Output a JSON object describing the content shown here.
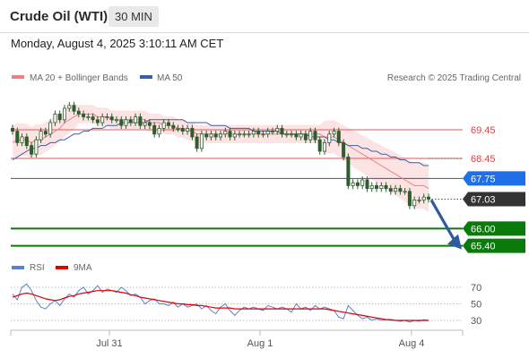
{
  "header": {
    "title": "Crude Oil (WTI)",
    "interval": "30 MIN"
  },
  "timestamp": "Monday, August 4, 2025 3:10:11 AM CET",
  "legend": {
    "ma20": "MA 20 + Bollinger Bands",
    "ma50": "MA 50",
    "copyright": "Research © 2025 Trading Central",
    "rsi": "RSI",
    "ma9": "9MA"
  },
  "colors": {
    "ma20": "#f08080",
    "band": "#fde1e1",
    "ma50": "#3a5fa0",
    "candle": "#2f5d2f",
    "level_red": "#e05a5a",
    "level_blue": "#1f5f96",
    "level_green": "#0a7a0a",
    "tag_blue": "#1e6fe8",
    "tag_dark": "#333333",
    "arrow": "#2f5a9e",
    "rsi": "#5b7fd6",
    "ma9": "#e00000"
  },
  "chart_data": [
    {
      "type": "candlestick",
      "title": "Crude Oil (WTI)",
      "interval": "30 MIN",
      "ylim": [
        65.0,
        70.0
      ],
      "x_ticks": [
        "Jul 31",
        "Aug 1",
        "Aug 4"
      ],
      "levels": [
        {
          "label": "69.45",
          "value": 69.45,
          "style": "red-line"
        },
        {
          "label": "68.45",
          "value": 68.45,
          "style": "red-line"
        },
        {
          "label": "67.75",
          "value": 67.75,
          "style": "blue-line-tag"
        },
        {
          "label": "67.03",
          "value": 67.03,
          "style": "current-price"
        },
        {
          "label": "66.00",
          "value": 66.0,
          "style": "green-line-tag"
        },
        {
          "label": "65.40",
          "value": 65.4,
          "style": "green-line-tag"
        }
      ],
      "close": [
        69.4,
        69.0,
        69.2,
        68.9,
        68.6,
        69.1,
        69.4,
        69.3,
        69.7,
        70.0,
        69.8,
        70.2,
        70.3,
        70.1,
        70.0,
        69.9,
        69.9,
        69.8,
        69.7,
        69.9,
        69.9,
        69.8,
        69.8,
        69.6,
        69.8,
        69.7,
        69.9,
        69.6,
        69.7,
        69.6,
        69.3,
        69.5,
        69.7,
        69.6,
        69.5,
        69.5,
        69.4,
        69.5,
        69.2,
        68.8,
        69.3,
        69.2,
        69.3,
        69.2,
        69.3,
        69.4,
        69.2,
        69.3,
        69.3,
        69.3,
        69.3,
        69.4,
        69.3,
        69.3,
        69.4,
        69.4,
        69.5,
        69.3,
        69.3,
        69.3,
        69.2,
        69.3,
        69.1,
        69.4,
        69.1,
        68.7,
        69.0,
        69.3,
        69.4,
        69.0,
        68.5,
        67.5,
        67.6,
        67.5,
        67.7,
        67.4,
        67.5,
        67.4,
        67.5,
        67.4,
        67.3,
        67.4,
        67.3,
        67.3,
        66.8,
        67.0,
        67.0,
        67.1,
        67.03
      ],
      "series": [
        {
          "name": "MA 20",
          "values": [
            69.0,
            69.1,
            69.1,
            69.1,
            69.0,
            69.1,
            69.1,
            69.2,
            69.3,
            69.4,
            69.5,
            69.7,
            69.8,
            69.9,
            70.0,
            70.0,
            70.0,
            70.0,
            69.9,
            69.9,
            69.9,
            69.8,
            69.8,
            69.8,
            69.8,
            69.8,
            69.8,
            69.8,
            69.8,
            69.7,
            69.7,
            69.7,
            69.6,
            69.6,
            69.6,
            69.5,
            69.5,
            69.4,
            69.4,
            69.3,
            69.3,
            69.3,
            69.3,
            69.3,
            69.3,
            69.3,
            69.3,
            69.3,
            69.3,
            69.3,
            69.3,
            69.3,
            69.3,
            69.3,
            69.3,
            69.3,
            69.3,
            69.3,
            69.3,
            69.3,
            69.3,
            69.3,
            69.3,
            69.3,
            69.3,
            69.3,
            69.2,
            69.2,
            69.2,
            69.1,
            69.0,
            68.9,
            68.8,
            68.7,
            68.6,
            68.5,
            68.4,
            68.3,
            68.2,
            68.1,
            68.0,
            67.9,
            67.8,
            67.7,
            67.6,
            67.5,
            67.5,
            67.5,
            67.4
          ]
        },
        {
          "name": "MA 50",
          "values": [
            68.4,
            68.5,
            68.6,
            68.7,
            68.8,
            68.8,
            68.9,
            68.9,
            69.0,
            69.0,
            69.1,
            69.1,
            69.2,
            69.3,
            69.3,
            69.4,
            69.4,
            69.5,
            69.5,
            69.5,
            69.6,
            69.6,
            69.6,
            69.7,
            69.7,
            69.7,
            69.7,
            69.7,
            69.7,
            69.8,
            69.8,
            69.8,
            69.8,
            69.8,
            69.8,
            69.8,
            69.8,
            69.7,
            69.7,
            69.7,
            69.7,
            69.7,
            69.6,
            69.6,
            69.6,
            69.6,
            69.5,
            69.5,
            69.5,
            69.5,
            69.5,
            69.4,
            69.4,
            69.4,
            69.4,
            69.4,
            69.4,
            69.3,
            69.3,
            69.3,
            69.3,
            69.3,
            69.3,
            69.2,
            69.2,
            69.2,
            69.2,
            69.1,
            69.1,
            69.0,
            69.0,
            68.9,
            68.9,
            68.9,
            68.8,
            68.8,
            68.7,
            68.7,
            68.6,
            68.6,
            68.5,
            68.5,
            68.4,
            68.4,
            68.3,
            68.3,
            68.3,
            68.2,
            68.2
          ]
        }
      ],
      "annotations": [
        "arrow pointing down from 67.03 toward 65.40"
      ]
    },
    {
      "type": "line",
      "title": "RSI",
      "ylim": [
        20,
        80
      ],
      "y_ticks": [
        70,
        50,
        30
      ],
      "series": [
        {
          "name": "RSI",
          "values": [
            62,
            55,
            70,
            74,
            66,
            54,
            46,
            44,
            50,
            54,
            48,
            56,
            62,
            58,
            66,
            70,
            62,
            66,
            72,
            64,
            68,
            66,
            64,
            70,
            66,
            60,
            62,
            58,
            50,
            54,
            56,
            50,
            50,
            48,
            52,
            46,
            50,
            46,
            48,
            50,
            44,
            48,
            42,
            38,
            46,
            50,
            42,
            36,
            42,
            46,
            44,
            46,
            44,
            42,
            48,
            46,
            44,
            46,
            44,
            40,
            50,
            44,
            46,
            42,
            48,
            44,
            46,
            44,
            42,
            34,
            32,
            48,
            42,
            36,
            32,
            34,
            30,
            32,
            30,
            31,
            30,
            30,
            29,
            30,
            28,
            30,
            29,
            31,
            30
          ]
        },
        {
          "name": "9MA",
          "values": [
            58,
            60,
            62,
            63,
            62,
            60,
            58,
            56,
            55,
            54,
            55,
            57,
            59,
            60,
            62,
            63,
            64,
            65,
            66,
            66,
            66,
            66,
            65,
            64,
            63,
            61,
            60,
            58,
            57,
            56,
            55,
            54,
            53,
            52,
            51,
            50,
            50,
            49,
            49,
            48,
            48,
            47,
            46,
            45,
            45,
            45,
            45,
            44,
            44,
            44,
            44,
            44,
            44,
            44,
            44,
            44,
            44,
            44,
            44,
            44,
            44,
            44,
            44,
            44,
            44,
            44,
            44,
            43,
            42,
            41,
            40,
            39,
            38,
            37,
            36,
            35,
            34,
            33,
            32,
            31,
            31,
            30,
            30,
            30,
            30,
            30,
            30,
            30,
            30
          ]
        }
      ]
    }
  ]
}
